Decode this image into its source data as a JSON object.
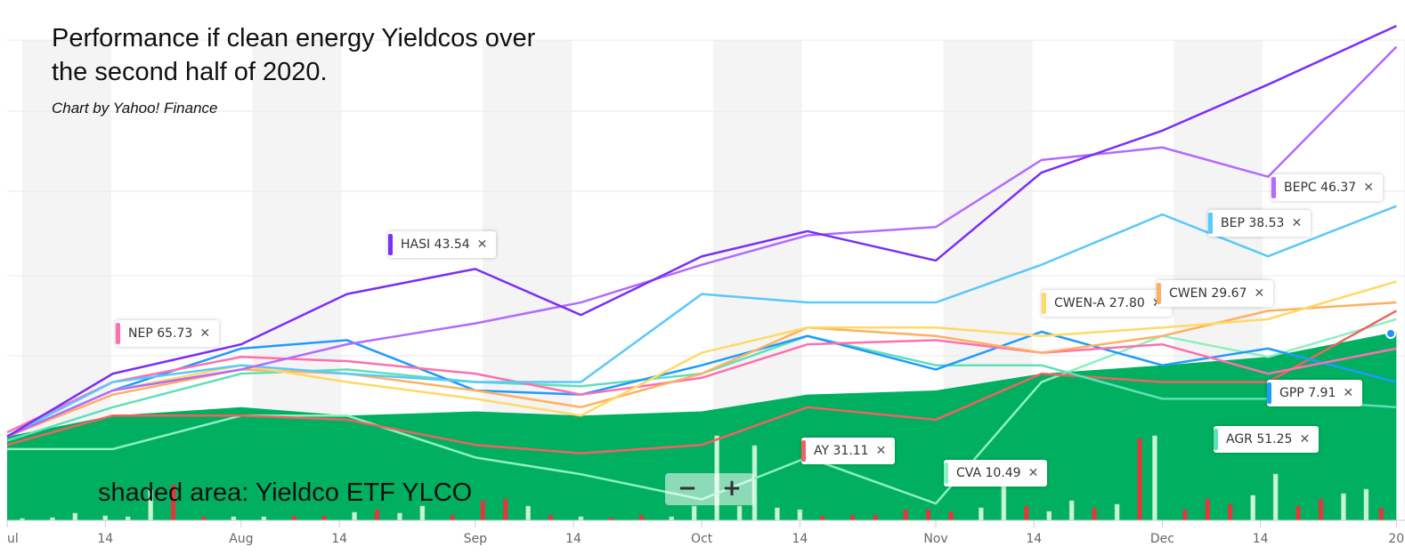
{
  "title": "Performance if clean energy Yieldcos over the second half of 2020.",
  "title_lines": [
    "Performance if clean energy Yieldcos over",
    "the second half of 2020."
  ],
  "subtitle": "Chart by Yahoo! Finance",
  "note": "shaded area: Yieldco ETF YLCO",
  "zoom_out": "−",
  "zoom_in": "+",
  "chart_data": {
    "type": "line",
    "title": "Performance if clean energy Yieldcos over the second half of 2020.",
    "xlabel": "",
    "ylabel": "",
    "x_ticks": [
      {
        "day": 0,
        "label": "ul"
      },
      {
        "day": 13,
        "label": "14"
      },
      {
        "day": 31,
        "label": "Aug"
      },
      {
        "day": 44,
        "label": "14"
      },
      {
        "day": 62,
        "label": "Sep"
      },
      {
        "day": 75,
        "label": "14"
      },
      {
        "day": 92,
        "label": "Oct"
      },
      {
        "day": 105,
        "label": "14"
      },
      {
        "day": 123,
        "label": "Nov"
      },
      {
        "day": 136,
        "label": "14"
      },
      {
        "day": 153,
        "label": "Dec"
      },
      {
        "day": 166,
        "label": "14"
      },
      {
        "day": 184,
        "label": "20"
      }
    ],
    "x_days": [
      0,
      14,
      31,
      45,
      62,
      76,
      92,
      106,
      123,
      137,
      153,
      167,
      184
    ],
    "ylim": [
      -21,
      100
    ],
    "grid": true,
    "area": {
      "name": "YLCO",
      "color": "#00b060",
      "values": [
        -1,
        4,
        6,
        4,
        5,
        4,
        5,
        9,
        10,
        14,
        16,
        18,
        24
      ]
    },
    "series": [
      {
        "name": "HASI",
        "label_value": "43.54",
        "color": "#7b2ff7",
        "values": [
          -1,
          14,
          21,
          33,
          39,
          28,
          42,
          48,
          41,
          62,
          72,
          83,
          97
        ]
      },
      {
        "name": "BEPC",
        "label_value": "46.37",
        "color": "#b36bff",
        "values": [
          -1,
          10,
          15,
          21,
          26,
          31,
          40,
          47,
          49,
          65,
          68,
          61,
          92
        ]
      },
      {
        "name": "BEP",
        "label_value": "38.53",
        "color": "#5ac8fa",
        "values": [
          -1,
          12,
          16,
          14,
          12,
          12,
          33,
          31,
          31,
          40,
          52,
          42,
          54
        ]
      },
      {
        "name": "CWEN-A",
        "label_value": "27.80",
        "color": "#ffd966",
        "values": [
          -1,
          10,
          16,
          12,
          8,
          4,
          19,
          25,
          25,
          23,
          25,
          27,
          36
        ]
      },
      {
        "name": "CWEN",
        "label_value": "29.67",
        "color": "#ffb060",
        "values": [
          -1,
          9,
          15,
          14,
          10,
          6,
          14,
          25,
          23,
          19,
          23,
          29,
          31
        ]
      },
      {
        "name": "NEP",
        "label_value": "65.73",
        "color": "#ff6fae",
        "values": [
          0,
          12,
          18,
          17,
          14,
          9,
          13,
          21,
          22,
          19,
          21,
          14,
          20
        ]
      },
      {
        "name": "GPP",
        "label_value": "7.91",
        "color": "#1e9bff",
        "values": [
          -1,
          10,
          20,
          22,
          10,
          9,
          16,
          23,
          15,
          24,
          16,
          20,
          12
        ]
      },
      {
        "name": "AGR",
        "label_value": "51.25",
        "color": "#5fe0b7",
        "values": [
          -2,
          6,
          14,
          15,
          12,
          11,
          14,
          23,
          16,
          16,
          8,
          8,
          6
        ]
      },
      {
        "name": "AY",
        "label_value": "31.11",
        "color": "#f06262",
        "values": [
          -3,
          4,
          4,
          3,
          -3,
          -5,
          -3,
          6,
          3,
          14,
          12,
          12,
          29
        ]
      },
      {
        "name": "CVA",
        "label_value": "10.49",
        "color": "#8ef0c0",
        "values": [
          -4,
          -4,
          4,
          4,
          -6,
          -10,
          -16,
          -6,
          -17,
          12,
          23,
          18,
          27
        ]
      }
    ],
    "volume": [
      {
        "day": 2,
        "v": 2,
        "up": true
      },
      {
        "day": 6,
        "v": 3,
        "up": true
      },
      {
        "day": 9,
        "v": 8,
        "up": true
      },
      {
        "day": 13,
        "v": 5,
        "up": true
      },
      {
        "day": 16,
        "v": 4,
        "up": true
      },
      {
        "day": 19,
        "v": 34,
        "up": true
      },
      {
        "day": 22,
        "v": 40,
        "up": false
      },
      {
        "day": 26,
        "v": 4,
        "up": false
      },
      {
        "day": 30,
        "v": 4,
        "up": true
      },
      {
        "day": 34,
        "v": 4,
        "up": true
      },
      {
        "day": 38,
        "v": 5,
        "up": false
      },
      {
        "day": 42,
        "v": 5,
        "up": false
      },
      {
        "day": 46,
        "v": 9,
        "up": true
      },
      {
        "day": 49,
        "v": 12,
        "up": false
      },
      {
        "day": 52,
        "v": 8,
        "up": true
      },
      {
        "day": 55,
        "v": 16,
        "up": true
      },
      {
        "day": 59,
        "v": 6,
        "up": false
      },
      {
        "day": 63,
        "v": 22,
        "up": false
      },
      {
        "day": 66,
        "v": 24,
        "up": false
      },
      {
        "day": 69,
        "v": 16,
        "up": true
      },
      {
        "day": 72,
        "v": 6,
        "up": false
      },
      {
        "day": 76,
        "v": 4,
        "up": true
      },
      {
        "day": 80,
        "v": 3,
        "up": false
      },
      {
        "day": 84,
        "v": 6,
        "up": false
      },
      {
        "day": 88,
        "v": 4,
        "up": true
      },
      {
        "day": 91,
        "v": 16,
        "up": true
      },
      {
        "day": 94,
        "v": 95,
        "up": true
      },
      {
        "day": 97,
        "v": 16,
        "up": true
      },
      {
        "day": 99,
        "v": 84,
        "up": true
      },
      {
        "day": 102,
        "v": 14,
        "up": true
      },
      {
        "day": 105,
        "v": 12,
        "up": true
      },
      {
        "day": 108,
        "v": 5,
        "up": false
      },
      {
        "day": 112,
        "v": 6,
        "up": false
      },
      {
        "day": 115,
        "v": 6,
        "up": false
      },
      {
        "day": 119,
        "v": 12,
        "up": false
      },
      {
        "day": 122,
        "v": 12,
        "up": false
      },
      {
        "day": 125,
        "v": 10,
        "up": false
      },
      {
        "day": 129,
        "v": 14,
        "up": true
      },
      {
        "day": 132,
        "v": 42,
        "up": true
      },
      {
        "day": 135,
        "v": 16,
        "up": false
      },
      {
        "day": 138,
        "v": 10,
        "up": true
      },
      {
        "day": 141,
        "v": 22,
        "up": true
      },
      {
        "day": 144,
        "v": 14,
        "up": false
      },
      {
        "day": 147,
        "v": 18,
        "up": true
      },
      {
        "day": 150,
        "v": 92,
        "up": false
      },
      {
        "day": 152,
        "v": 95,
        "up": true
      },
      {
        "day": 156,
        "v": 12,
        "up": false
      },
      {
        "day": 159,
        "v": 24,
        "up": false
      },
      {
        "day": 162,
        "v": 18,
        "up": false
      },
      {
        "day": 165,
        "v": 28,
        "up": true
      },
      {
        "day": 168,
        "v": 52,
        "up": true
      },
      {
        "day": 171,
        "v": 16,
        "up": false
      },
      {
        "day": 174,
        "v": 24,
        "up": false
      },
      {
        "day": 177,
        "v": 30,
        "up": true
      },
      {
        "day": 180,
        "v": 35,
        "up": true
      },
      {
        "day": 182,
        "v": 14,
        "up": false
      }
    ]
  }
}
